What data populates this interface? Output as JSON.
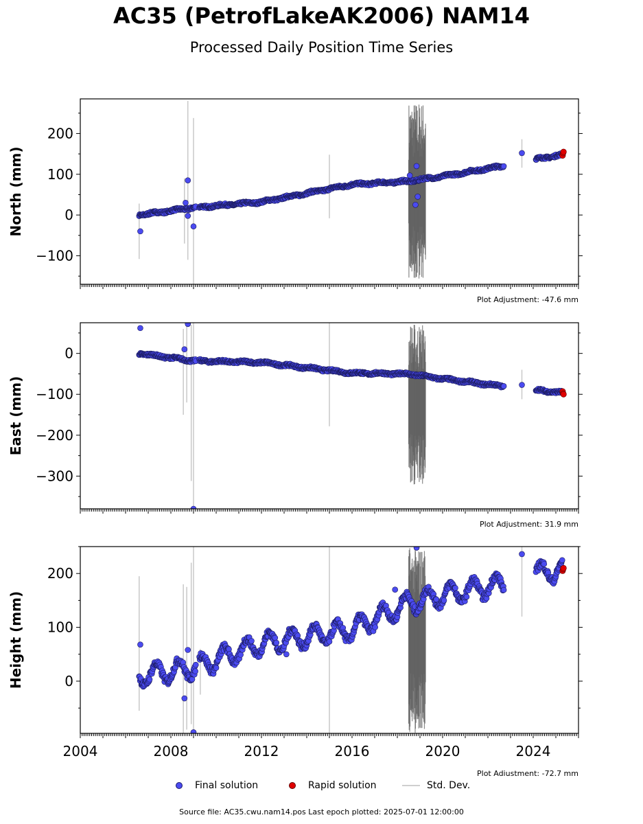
{
  "title": "AC35 (PetrofLakeAK2006) NAM14",
  "subtitle": "Processed Daily Position Time Series",
  "footer": "Source file: AC35.cwu.nam14.pos  Last epoch plotted: 2025-07-01 12:00:00",
  "legend": {
    "final": "Final solution",
    "rapid": "Rapid solution",
    "std": "Std. Dev."
  },
  "colors": {
    "final": "#4b4bf0",
    "final_edge": "#1a1a5a",
    "rapid": "#e00000",
    "std": "#c8c8c8",
    "std_dark": "#606060"
  },
  "chart_data": [
    {
      "type": "scatter",
      "panel": "north",
      "ylabel": "North (mm)",
      "ylim": [
        -170,
        285
      ],
      "yticks": [
        -100,
        0,
        100,
        200
      ],
      "xlim": [
        2004.0,
        2026.0
      ],
      "adjustment": "Plot Adjustment: -47.6 mm",
      "trend": {
        "x": [
          2006.6,
          2009.0,
          2012.0,
          2016.0,
          2018.5,
          2020.0,
          2022.6,
          2024.2,
          2025.5
        ],
        "y": [
          0,
          18,
          32,
          75,
          83,
          95,
          120,
          138,
          150
        ]
      },
      "outliers": [
        {
          "x": 2006.65,
          "y": -40
        },
        {
          "x": 2008.75,
          "y": 85
        },
        {
          "x": 2008.75,
          "y": -2
        },
        {
          "x": 2008.65,
          "y": 30
        },
        {
          "x": 2009.0,
          "y": -28
        },
        {
          "x": 2018.85,
          "y": 120
        },
        {
          "x": 2018.8,
          "y": 25
        },
        {
          "x": 2018.9,
          "y": 45
        },
        {
          "x": 2018.55,
          "y": 97
        },
        {
          "x": 2023.5,
          "y": 152
        }
      ],
      "errorbars": [
        {
          "x": 2006.6,
          "lo": -108,
          "hi": 28
        },
        {
          "x": 2008.6,
          "lo": -70,
          "hi": 90
        },
        {
          "x": 2008.75,
          "lo": -110,
          "hi": 280
        },
        {
          "x": 2009.0,
          "lo": -170,
          "hi": 238
        },
        {
          "x": 2015.0,
          "lo": -8,
          "hi": 148
        },
        {
          "x": 2023.5,
          "lo": 116,
          "hi": 186
        }
      ],
      "dark_band": {
        "x0": 2018.5,
        "x1": 2019.25,
        "lo": -165,
        "hi": 280
      },
      "rapid": [
        {
          "x": 2025.3,
          "y": 146
        },
        {
          "x": 2025.32,
          "y": 152
        },
        {
          "x": 2025.34,
          "y": 155
        }
      ]
    },
    {
      "type": "scatter",
      "panel": "east",
      "ylabel": "East (mm)",
      "ylim": [
        -380,
        75
      ],
      "yticks": [
        -300,
        -200,
        -100,
        0
      ],
      "xlim": [
        2004.0,
        2026.0
      ],
      "adjustment": "Plot Adjustment: 31.9 mm",
      "trend": {
        "x": [
          2006.6,
          2009.0,
          2012.0,
          2016.0,
          2018.5,
          2020.0,
          2022.6,
          2024.2,
          2025.5
        ],
        "y": [
          0,
          -18,
          -22,
          -48,
          -50,
          -62,
          -80,
          -90,
          -97
        ]
      },
      "outliers": [
        {
          "x": 2006.65,
          "y": 62
        },
        {
          "x": 2008.75,
          "y": 72
        },
        {
          "x": 2008.6,
          "y": 10
        },
        {
          "x": 2009.0,
          "y": -380
        },
        {
          "x": 2023.5,
          "y": -77
        }
      ],
      "errorbars": [
        {
          "x": 2008.55,
          "lo": -150,
          "hi": 60
        },
        {
          "x": 2008.7,
          "lo": -120,
          "hi": 70
        },
        {
          "x": 2008.9,
          "lo": -312,
          "hi": 70
        },
        {
          "x": 2009.0,
          "lo": -380,
          "hi": 75
        },
        {
          "x": 2015.0,
          "lo": -178,
          "hi": 75
        },
        {
          "x": 2023.5,
          "lo": -112,
          "hi": -40
        }
      ],
      "dark_band": {
        "x0": 2018.5,
        "x1": 2019.25,
        "lo": -325,
        "hi": 75
      },
      "rapid": [
        {
          "x": 2025.3,
          "y": -93
        },
        {
          "x": 2025.32,
          "y": -98
        },
        {
          "x": 2025.34,
          "y": -100
        }
      ]
    },
    {
      "type": "scatter",
      "panel": "height",
      "ylabel": "Height (mm)",
      "ylim": [
        -97,
        250
      ],
      "yticks": [
        0,
        100,
        200
      ],
      "xlim": [
        2004.0,
        2026.0
      ],
      "xticks": [
        2004,
        2008,
        2012,
        2016,
        2020,
        2024
      ],
      "adjustment": "Plot Adjustment: -72.7 mm",
      "trend": {
        "x": [
          2006.6,
          2009.0,
          2012.0,
          2016.0,
          2018.5,
          2020.0,
          2022.6,
          2024.2,
          2025.5
        ],
        "y": [
          10,
          25,
          70,
          95,
          145,
          160,
          180,
          200,
          210
        ]
      },
      "seasonal_amplitude": 18,
      "outliers": [
        {
          "x": 2006.65,
          "y": 68
        },
        {
          "x": 2008.6,
          "y": -32
        },
        {
          "x": 2008.75,
          "y": 58
        },
        {
          "x": 2009.0,
          "y": -95
        },
        {
          "x": 2018.85,
          "y": 248
        },
        {
          "x": 2023.5,
          "y": 236
        },
        {
          "x": 2013.1,
          "y": 50
        },
        {
          "x": 2017.9,
          "y": 170
        }
      ],
      "errorbars": [
        {
          "x": 2006.6,
          "lo": -55,
          "hi": 195
        },
        {
          "x": 2008.55,
          "lo": -97,
          "hi": 180
        },
        {
          "x": 2008.7,
          "lo": -90,
          "hi": 175
        },
        {
          "x": 2008.9,
          "lo": -80,
          "hi": 220
        },
        {
          "x": 2009.0,
          "lo": -97,
          "hi": 250
        },
        {
          "x": 2009.3,
          "lo": -25,
          "hi": 60
        },
        {
          "x": 2015.0,
          "lo": -97,
          "hi": 250
        },
        {
          "x": 2023.5,
          "lo": 120,
          "hi": 250
        }
      ],
      "dark_band": {
        "x0": 2018.5,
        "x1": 2019.25,
        "lo": -97,
        "hi": 250
      },
      "rapid": [
        {
          "x": 2025.3,
          "y": 205
        },
        {
          "x": 2025.32,
          "y": 208
        },
        {
          "x": 2025.34,
          "y": 210
        }
      ]
    }
  ]
}
